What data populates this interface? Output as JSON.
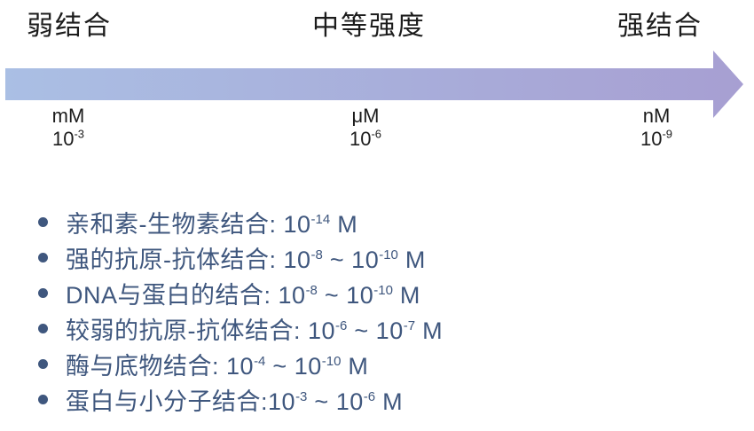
{
  "header": {
    "weak_label": "弱结合",
    "medium_label": "中等强度",
    "strong_label": "强结合"
  },
  "arrow": {
    "direction": "right",
    "gradient_start": "#aabfe4",
    "gradient_end": "#a79fd2"
  },
  "scale": {
    "ticks": [
      {
        "unit": "mM",
        "base": "10",
        "exp": "-3"
      },
      {
        "unit": "μM",
        "base": "10",
        "exp": "-6"
      },
      {
        "unit": "nM",
        "base": "10",
        "exp": "-9"
      }
    ]
  },
  "list": {
    "text_color": "#3f577e",
    "items": [
      {
        "segments": [
          {
            "t": "text",
            "v": "亲和素-生物素结合: "
          },
          {
            "t": "pow",
            "base": "10",
            "exp": "-14"
          },
          {
            "t": "text",
            "v": " M"
          }
        ]
      },
      {
        "segments": [
          {
            "t": "text",
            "v": "强的抗原-抗体结合: "
          },
          {
            "t": "pow",
            "base": "10",
            "exp": "-8"
          },
          {
            "t": "text",
            "v": " ~ "
          },
          {
            "t": "pow",
            "base": "10",
            "exp": "-10"
          },
          {
            "t": "text",
            "v": " M"
          }
        ]
      },
      {
        "segments": [
          {
            "t": "text",
            "v": "DNA与蛋白的结合: "
          },
          {
            "t": "pow",
            "base": "10",
            "exp": "-8"
          },
          {
            "t": "text",
            "v": " ~ "
          },
          {
            "t": "pow",
            "base": "10",
            "exp": "-10"
          },
          {
            "t": "text",
            "v": " M"
          }
        ]
      },
      {
        "segments": [
          {
            "t": "text",
            "v": "较弱的抗原-抗体结合: "
          },
          {
            "t": "pow",
            "base": "10",
            "exp": "-6"
          },
          {
            "t": "text",
            "v": " ~ "
          },
          {
            "t": "pow",
            "base": "10",
            "exp": "-7"
          },
          {
            "t": "text",
            "v": " M"
          }
        ]
      },
      {
        "segments": [
          {
            "t": "text",
            "v": "酶与底物结合: "
          },
          {
            "t": "pow",
            "base": "10",
            "exp": "-4"
          },
          {
            "t": "text",
            "v": " ~ "
          },
          {
            "t": "pow",
            "base": "10",
            "exp": "-10"
          },
          {
            "t": "text",
            "v": " M"
          }
        ]
      },
      {
        "segments": [
          {
            "t": "text",
            "v": "蛋白与小分子结合:"
          },
          {
            "t": "pow",
            "base": "10",
            "exp": "-3"
          },
          {
            "t": "text",
            "v": " ~ "
          },
          {
            "t": "pow",
            "base": "10",
            "exp": "-6"
          },
          {
            "t": "text",
            "v": " M"
          }
        ]
      }
    ]
  }
}
